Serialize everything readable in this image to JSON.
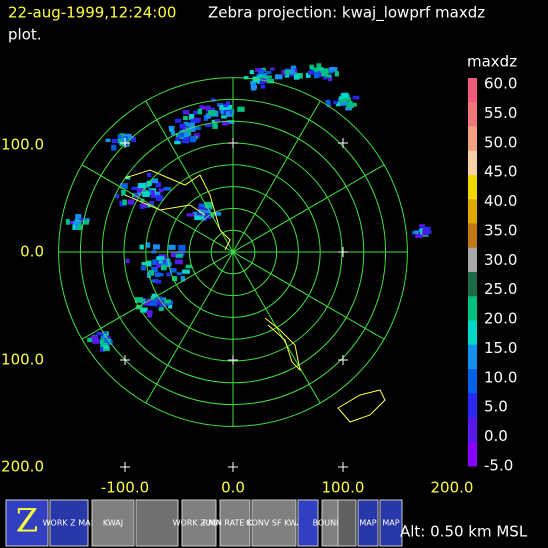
{
  "header": {
    "date": "22-aug-1999,12:24:00",
    "title": "Zebra projection: kwaj_lowprf maxdz",
    "title_cont": "plot."
  },
  "axes": {
    "x_labels": [
      "-100.0",
      "0.0",
      "100.0",
      "200.0"
    ],
    "y_labels": [
      "100.0",
      "0.0",
      "100.0",
      "200.0"
    ]
  },
  "colorbar": {
    "title": "maxdz",
    "labels": [
      "60.0",
      "55.0",
      "50.0",
      "45.0",
      "40.0",
      "35.0",
      "30.0",
      "25.0",
      "20.0",
      "15.0",
      "10.0",
      "5.0",
      "0.0",
      "-5.0"
    ],
    "colors": [
      "#f05a7a",
      "#f07878",
      "#f4a080",
      "#f8d0a8",
      "#f0d800",
      "#e0a800",
      "#c07818",
      "#a8a8a8",
      "#1c6a48",
      "#00c080",
      "#00d8c8",
      "#1890f0",
      "#0060e8",
      "#2828f0",
      "#5818e8",
      "#8a00ff"
    ]
  },
  "toolbar": {
    "buttons": [
      "Z",
      "WORK Z MAP",
      "KWAJ",
      "",
      "WORK Z MAP",
      "RAIN RATE KWAJ",
      "CONV SF KWA",
      "",
      "BOUNDS",
      "",
      "MAP",
      "MAP"
    ]
  },
  "footer": {
    "altitude": "Alt: 0.50 km MSL"
  }
}
